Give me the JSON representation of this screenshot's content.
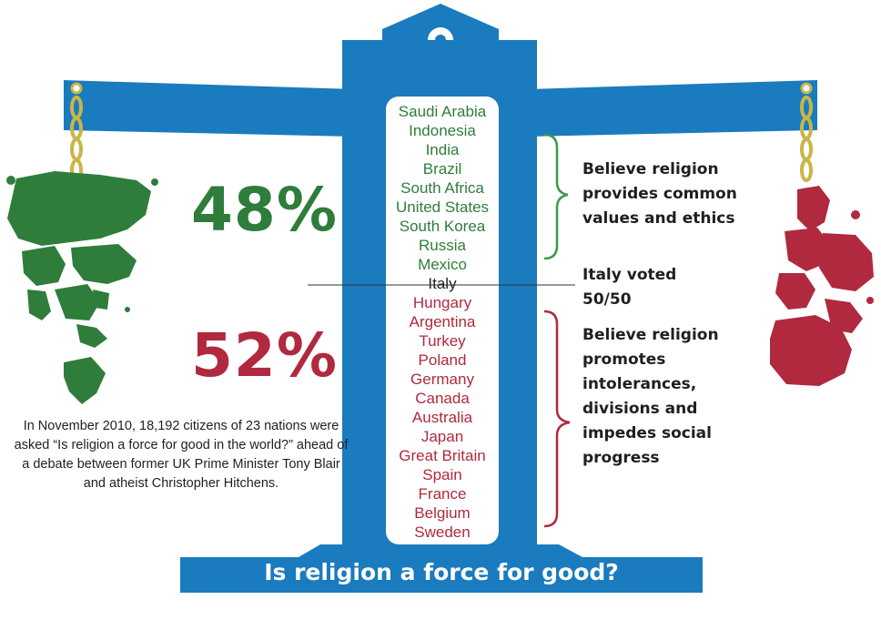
{
  "title": "Is religion a force for good?",
  "intro_text": "In November 2010, 18,192 citizens of 23 nations were asked “Is religion a force for good in the world?” ahead of a debate between former UK Prime Minister Tony Blair and atheist Christopher Hitchens.",
  "groups": {
    "good": {
      "percent": "48%",
      "label_lines": [
        "Believe religion",
        "provides common",
        "values and ethics"
      ],
      "countries": [
        "Saudi Arabia",
        "Indonesia",
        "India",
        "Brazil",
        "South Africa",
        "United States",
        "South Korea",
        "Russia",
        "Mexico"
      ],
      "color": "#2e7d3b"
    },
    "neutral": {
      "country": "Italy",
      "label_lines": [
        "Italy voted",
        "50/50"
      ]
    },
    "bad": {
      "percent": "52%",
      "label_lines": [
        "Believe religion",
        "promotes",
        "intolerances,",
        "divisions and",
        "impedes social",
        "progress"
      ],
      "countries": [
        "Hungary",
        "Argentina",
        "Turkey",
        "Poland",
        "Germany",
        "Canada",
        "Australia",
        "Japan",
        "Great Britain",
        "Spain",
        "France",
        "Belgium",
        "Sweden"
      ],
      "color": "#b0293f"
    }
  },
  "colors": {
    "scale_blue": "#1a7bbf",
    "chain_gold": "#c9b548",
    "bracket_good": "#3a9a48",
    "bracket_bad": "#b0293f"
  },
  "icons": [
    "balance-scale-icon",
    "chain-icon",
    "world-map-green-icon",
    "world-map-red-icon"
  ]
}
